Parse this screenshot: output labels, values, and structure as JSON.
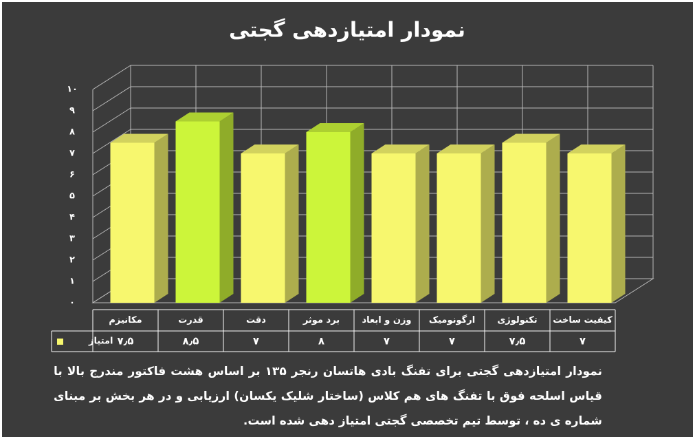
{
  "chart_data": {
    "type": "bar3d",
    "title": "نمودار امتیازدهی گجتی",
    "categories": [
      "مکانیزم",
      "قدرت",
      "دقت",
      "برد موثر",
      "وزن و ابعاد",
      "ارگونومیک",
      "تکنولوژی",
      "کیفیت ساخت"
    ],
    "series": [
      {
        "name": "امتیاز",
        "color": "#f7f76e",
        "values": [
          7.5,
          8.5,
          7,
          8,
          7,
          7,
          7.5,
          7
        ],
        "value_labels": [
          "۷٫۵",
          "۸٫۵",
          "۷",
          "۸",
          "۷",
          "۷",
          "۷٫۵",
          "۷"
        ],
        "colors": [
          "#f7f76e",
          "#ccf53a",
          "#f7f76e",
          "#ccf53a",
          "#f7f76e",
          "#f7f76e",
          "#f7f76e",
          "#f7f76e"
        ]
      }
    ],
    "ylim": [
      0,
      10
    ],
    "yticks": [
      {
        "value": 0,
        "label": "۰"
      },
      {
        "value": 1,
        "label": "۱"
      },
      {
        "value": 2,
        "label": "۲"
      },
      {
        "value": 3,
        "label": "۳"
      },
      {
        "value": 4,
        "label": "۴"
      },
      {
        "value": 5,
        "label": "۵"
      },
      {
        "value": 6,
        "label": "۶"
      },
      {
        "value": 7,
        "label": "۷"
      },
      {
        "value": 8,
        "label": "۸"
      },
      {
        "value": 9,
        "label": "۹"
      },
      {
        "value": 10,
        "label": "۱۰"
      }
    ],
    "grid": true,
    "caption": "نمودار امتیازدهی گجتی برای تفنگ بادی هاتسان رنجر ۱۳۵ بر اساس هشت فاکتور مندرج بالا با قیاس اسلحه فوق با تفنگ های هم کلاس (ساختار شلیک یکسان) ارزیابی و در هر بخش بر مبنای شماره ی ده ، توسط تیم تخصصی گجتی امتیاز دهی شده است."
  }
}
